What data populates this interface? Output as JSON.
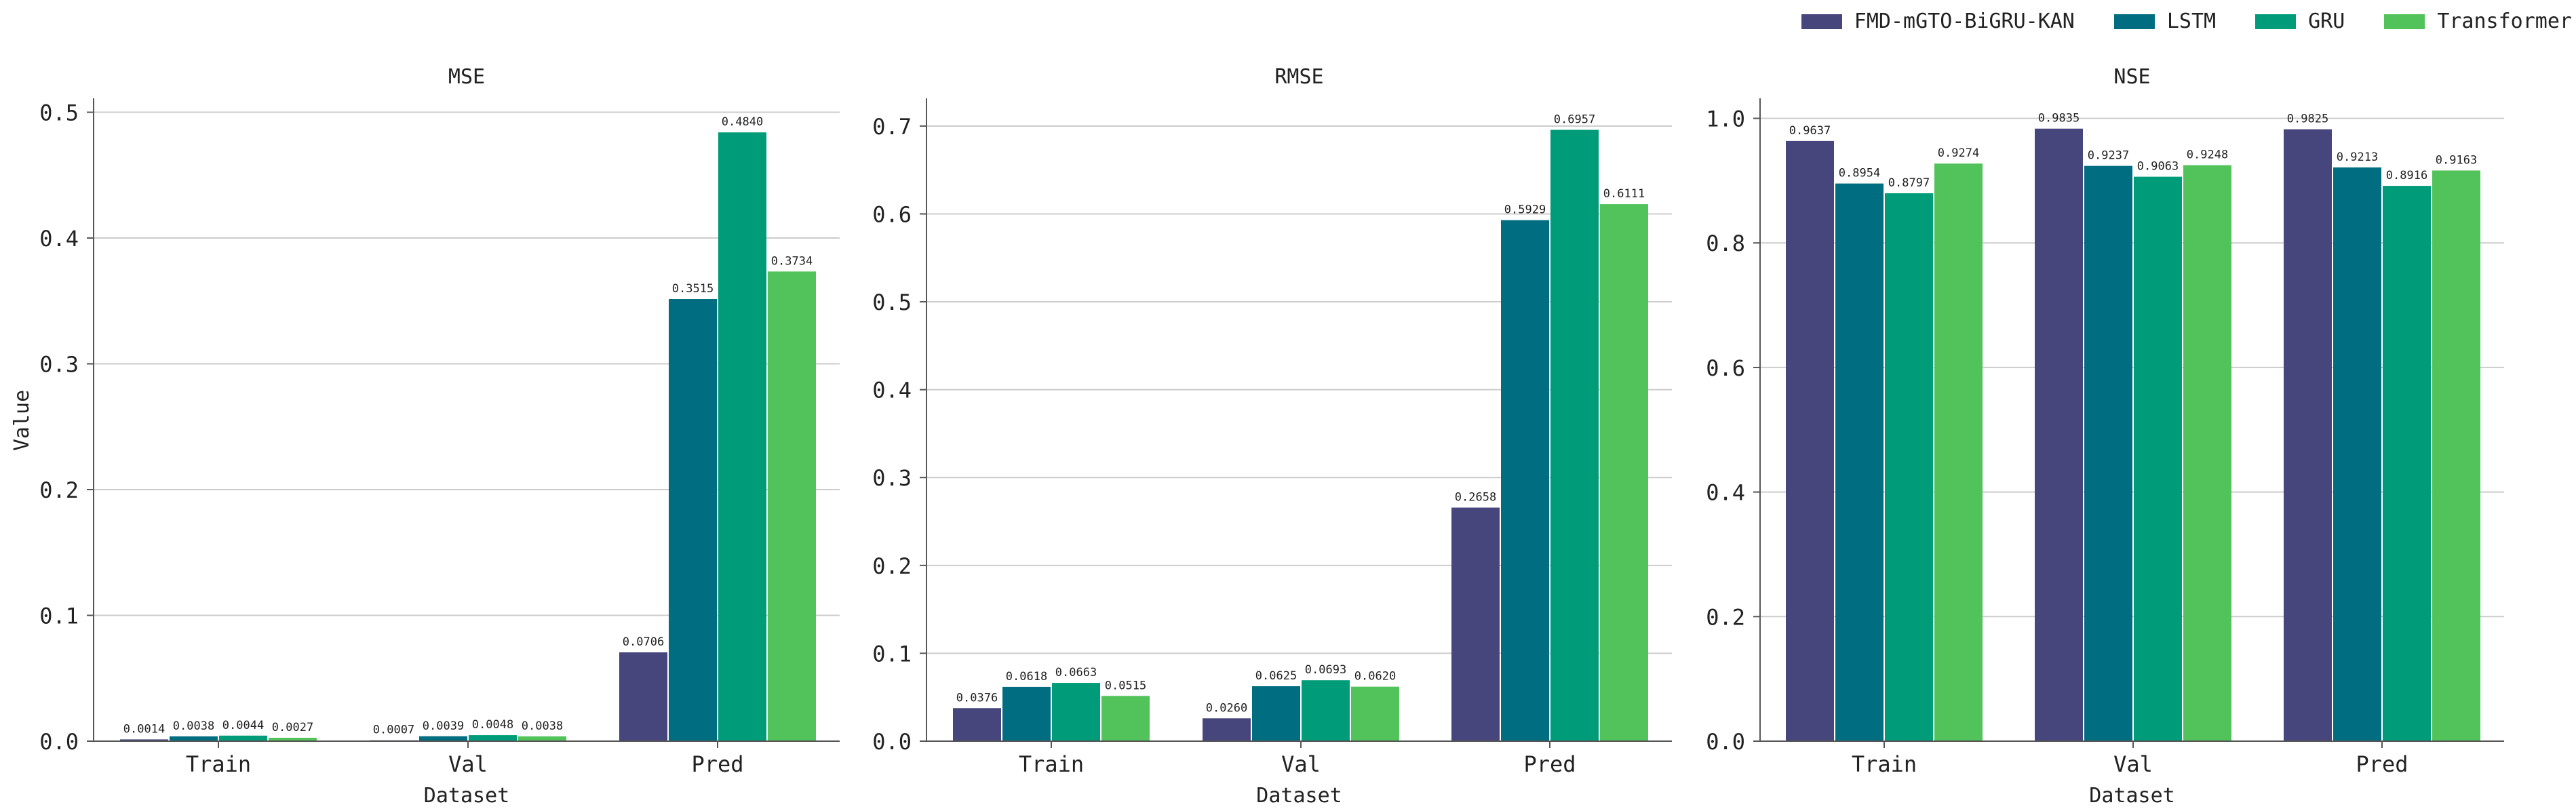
{
  "colors": {
    "FMD-mGTO-BiGRU-KAN": "#46457c",
    "LSTM": "#016d80",
    "GRU": "#009b78",
    "Transformer": "#52c35a"
  },
  "legend": [
    "FMD-mGTO-BiGRU-KAN",
    "LSTM",
    "GRU",
    "Transformer"
  ],
  "chart_data": [
    {
      "type": "bar",
      "title": "MSE",
      "xlabel": "Dataset",
      "ylabel": "Value",
      "categories": [
        "Train",
        "Val",
        "Pred"
      ],
      "ylim": [
        0,
        0.51
      ],
      "yticks": [
        "0.0",
        "0.1",
        "0.2",
        "0.3",
        "0.4",
        "0.5"
      ],
      "ytick_values": [
        0,
        0.1,
        0.2,
        0.3,
        0.4,
        0.5
      ],
      "series": [
        {
          "name": "FMD-mGTO-BiGRU-KAN",
          "values": [
            0.0014,
            0.0007,
            0.0706
          ],
          "labels": [
            "0.0014",
            "0.0007",
            "0.0706"
          ]
        },
        {
          "name": "LSTM",
          "values": [
            0.0038,
            0.0039,
            0.3515
          ],
          "labels": [
            "0.0038",
            "0.0039",
            "0.3515"
          ]
        },
        {
          "name": "GRU",
          "values": [
            0.0044,
            0.0048,
            0.484
          ],
          "labels": [
            "0.0044",
            "0.0048",
            "0.4840"
          ]
        },
        {
          "name": "Transformer",
          "values": [
            0.0027,
            0.0038,
            0.3734
          ],
          "labels": [
            "0.0027",
            "0.0038",
            "0.3734"
          ]
        }
      ],
      "grid": true
    },
    {
      "type": "bar",
      "title": "RMSE",
      "xlabel": "Dataset",
      "ylabel": "",
      "categories": [
        "Train",
        "Val",
        "Pred"
      ],
      "ylim": [
        0,
        0.73
      ],
      "yticks": [
        "0.0",
        "0.1",
        "0.2",
        "0.3",
        "0.4",
        "0.5",
        "0.6",
        "0.7"
      ],
      "ytick_values": [
        0,
        0.1,
        0.2,
        0.3,
        0.4,
        0.5,
        0.6,
        0.7
      ],
      "series": [
        {
          "name": "FMD-mGTO-BiGRU-KAN",
          "values": [
            0.0376,
            0.026,
            0.2658
          ],
          "labels": [
            "0.0376",
            "0.0260",
            "0.2658"
          ]
        },
        {
          "name": "LSTM",
          "values": [
            0.0618,
            0.0625,
            0.5929
          ],
          "labels": [
            "0.0618",
            "0.0625",
            "0.5929"
          ]
        },
        {
          "name": "GRU",
          "values": [
            0.0663,
            0.0693,
            0.6957
          ],
          "labels": [
            "0.0663",
            "0.0693",
            "0.6957"
          ]
        },
        {
          "name": "Transformer",
          "values": [
            0.0515,
            0.062,
            0.6111
          ],
          "labels": [
            "0.0515",
            "0.0620",
            "0.6111"
          ]
        }
      ],
      "grid": true
    },
    {
      "type": "bar",
      "title": "NSE",
      "xlabel": "Dataset",
      "ylabel": "",
      "categories": [
        "Train",
        "Val",
        "Pred"
      ],
      "ylim": [
        0,
        1.03
      ],
      "yticks": [
        "0.0",
        "0.2",
        "0.4",
        "0.6",
        "0.8",
        "1.0"
      ],
      "ytick_values": [
        0,
        0.2,
        0.4,
        0.6,
        0.8,
        1.0
      ],
      "series": [
        {
          "name": "FMD-mGTO-BiGRU-KAN",
          "values": [
            0.9637,
            0.9835,
            0.9825
          ],
          "labels": [
            "0.9637",
            "0.9835",
            "0.9825"
          ]
        },
        {
          "name": "LSTM",
          "values": [
            0.8954,
            0.9237,
            0.9213
          ],
          "labels": [
            "0.8954",
            "0.9237",
            "0.9213"
          ]
        },
        {
          "name": "GRU",
          "values": [
            0.8797,
            0.9063,
            0.8916
          ],
          "labels": [
            "0.8797",
            "0.9063",
            "0.8916"
          ]
        },
        {
          "name": "Transformer",
          "values": [
            0.9274,
            0.9248,
            0.9163
          ],
          "labels": [
            "0.9274",
            "0.9248",
            "0.9163"
          ]
        }
      ],
      "grid": true
    }
  ]
}
